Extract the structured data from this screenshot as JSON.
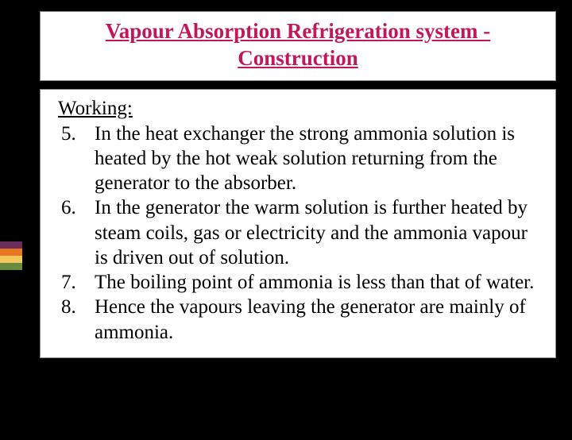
{
  "title": "Vapour Absorption Refrigeration system - Construction",
  "workingLabel": "Working:",
  "items": [
    "In the heat exchanger the strong ammonia solution is heated by the hot weak solution returning from the generator to the absorber.",
    "In the generator the warm solution is further heated by steam coils, gas or electricity and the ammonia vapour is driven out of solution.",
    "The boiling point of ammonia is less than that of water.",
    "Hence the vapours leaving the generator are mainly of ammonia."
  ],
  "accentColors": [
    "#6b2d5c",
    "#e87722",
    "#f2c75c",
    "#6a8a3f"
  ],
  "colors": {
    "titleColor": "#c2185b",
    "background": "#000000",
    "boxBackground": "#ffffff"
  }
}
